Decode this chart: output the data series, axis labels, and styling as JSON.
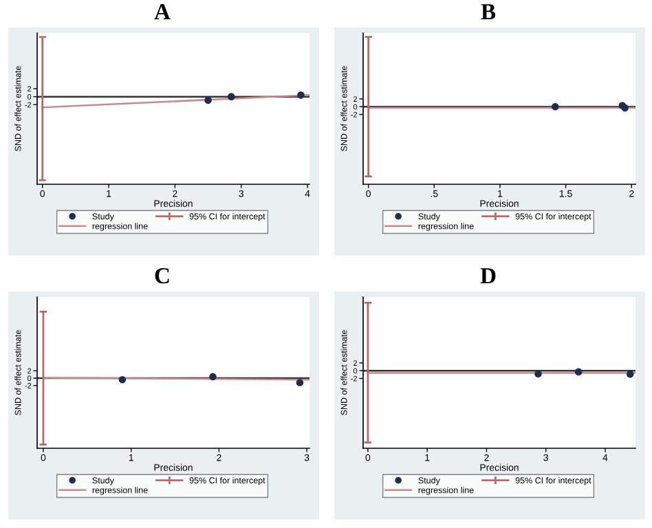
{
  "chart_data": [
    {
      "type": "scatter",
      "title": "A",
      "xlabel": "Precision",
      "ylabel": "SND of effect estimate",
      "xlim": [
        -0.08,
        4.03
      ],
      "ylim": [
        -22,
        16
      ],
      "xticks": [
        0,
        1,
        2,
        3,
        4
      ],
      "yticks": [
        -2,
        0,
        2
      ],
      "grid": false,
      "legend": "bottom",
      "ref_lines": [
        {
          "axis": "y",
          "value": 0,
          "color": "#333333"
        }
      ],
      "series": [
        {
          "name": "Study",
          "marker": "circle",
          "color": "#1f2d4f",
          "x": [
            2.5,
            2.85,
            3.9
          ],
          "values": [
            -0.9,
            0,
            0.4
          ]
        },
        {
          "name": "regression line",
          "type": "line",
          "marker": "none",
          "color": "#c88a8a",
          "x": [
            0,
            4.03
          ],
          "values": [
            -2.7,
            0.4
          ]
        },
        {
          "name": "95% CI for intercept",
          "type": "line",
          "marker": "none",
          "color": "#b86a6a",
          "x": [
            0,
            0
          ],
          "values": [
            -21,
            15
          ]
        }
      ]
    },
    {
      "type": "scatter",
      "title": "B",
      "xlabel": "Precision",
      "ylabel": "SND of effect estimate",
      "xlim": [
        -0.04,
        2.03
      ],
      "ylim": [
        -20,
        19
      ],
      "xticks": [
        0,
        {
          "value": 0.5,
          "label": ".5"
        },
        1,
        1.5,
        2
      ],
      "yticks": [
        -2,
        0,
        2
      ],
      "grid": false,
      "legend": "bottom",
      "ref_lines": [
        {
          "axis": "y",
          "value": 0,
          "color": "#333333"
        }
      ],
      "series": [
        {
          "name": "Study",
          "marker": "circle",
          "color": "#1f2d4f",
          "x": [
            1.42,
            1.93,
            1.95
          ],
          "values": [
            0,
            0.3,
            -0.3
          ]
        },
        {
          "name": "regression line",
          "type": "line",
          "marker": "none",
          "color": "#c88a8a",
          "x": [
            0,
            2.03
          ],
          "values": [
            -0.3,
            -0.3
          ]
        },
        {
          "name": "95% CI for intercept",
          "type": "line",
          "marker": "none",
          "color": "#b86a6a",
          "x": [
            0,
            0
          ],
          "values": [
            -18,
            18
          ]
        }
      ]
    },
    {
      "type": "scatter",
      "title": "C",
      "xlabel": "Precision",
      "ylabel": "SND of effect estimate",
      "xlim": [
        -0.07,
        3.03
      ],
      "ylim": [
        -19,
        22
      ],
      "xticks": [
        0,
        1,
        2,
        3
      ],
      "yticks": [
        -2,
        0,
        2
      ],
      "grid": false,
      "legend": "bottom",
      "ref_lines": [
        {
          "axis": "y",
          "value": 0,
          "color": "#333333"
        }
      ],
      "series": [
        {
          "name": "Study",
          "marker": "circle",
          "color": "#1f2d4f",
          "x": [
            0.9,
            1.93,
            2.92
          ],
          "values": [
            -0.4,
            0.4,
            -1.2
          ]
        },
        {
          "name": "regression line",
          "type": "line",
          "marker": "none",
          "color": "#c88a8a",
          "x": [
            0,
            3.03
          ],
          "values": [
            0.1,
            -0.4
          ]
        },
        {
          "name": "95% CI for intercept",
          "type": "line",
          "marker": "none",
          "color": "#b86a6a",
          "x": [
            0,
            0
          ],
          "values": [
            -18,
            18
          ]
        }
      ]
    },
    {
      "type": "scatter",
      "title": "D",
      "xlabel": "Precision",
      "ylabel": "SND of effect estimate",
      "xlim": [
        -0.08,
        4.51
      ],
      "ylim": [
        -20,
        19
      ],
      "xticks": [
        0,
        1,
        2,
        3,
        4
      ],
      "yticks": [
        -2,
        0,
        2
      ],
      "grid": false,
      "legend": "bottom",
      "ref_lines": [
        {
          "axis": "y",
          "value": 0,
          "color": "#333333"
        }
      ],
      "series": [
        {
          "name": "Study",
          "marker": "circle",
          "color": "#1f2d4f",
          "x": [
            2.87,
            3.55,
            4.42
          ],
          "values": [
            -0.8,
            -0.3,
            -0.9
          ]
        },
        {
          "name": "regression line",
          "type": "line",
          "marker": "none",
          "color": "#c88a8a",
          "x": [
            0,
            4.51
          ],
          "values": [
            -0.6,
            -0.6
          ]
        },
        {
          "name": "95% CI for intercept",
          "type": "line",
          "marker": "none",
          "color": "#b86a6a",
          "x": [
            0,
            0
          ],
          "values": [
            -18.5,
            17.5
          ]
        }
      ]
    }
  ]
}
